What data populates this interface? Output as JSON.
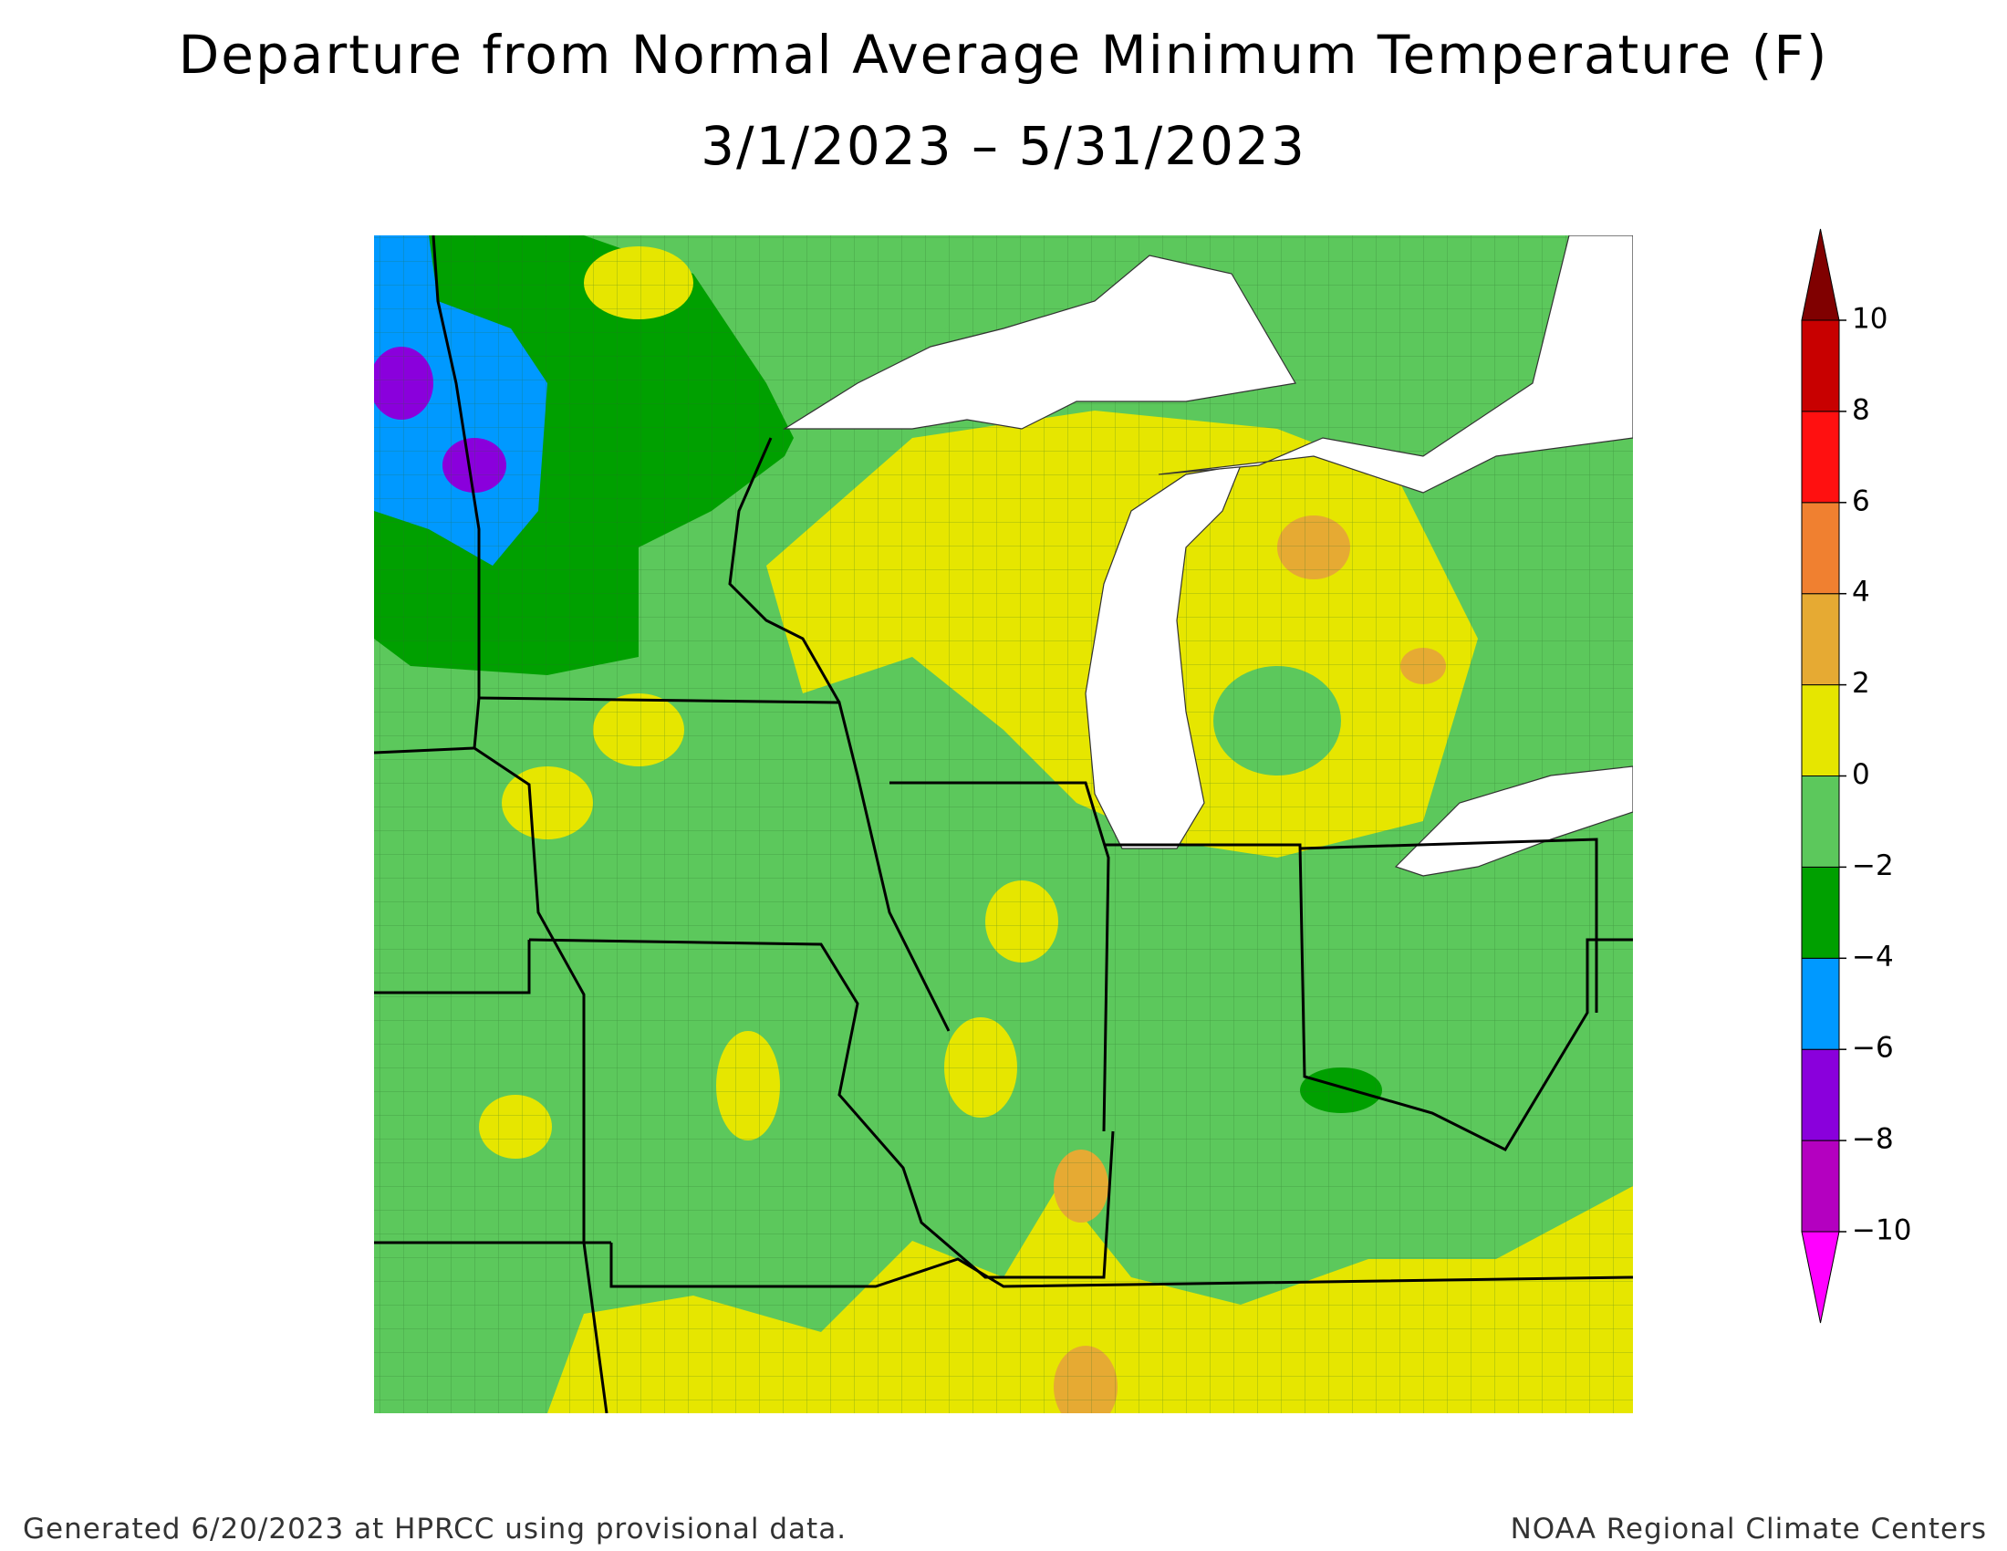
{
  "title": [
    "Departure from Normal Average Minimum Temperature (F)",
    "3/1/2023 – 5/31/2023"
  ],
  "legend": {
    "ticks": [
      {
        "value": -10,
        "label": "−10"
      },
      {
        "value": -8,
        "label": "−8"
      },
      {
        "value": -6,
        "label": "−6"
      },
      {
        "value": -4,
        "label": "−4"
      },
      {
        "value": -2,
        "label": "−2"
      },
      0,
      2,
      4,
      6,
      8,
      10
    ],
    "colors": [
      "#ff00ff",
      "#b400c0",
      "#8a00dc",
      "#0099ff",
      "#00a000",
      "#5cc85c",
      "#e6e600",
      "#e6aa33",
      "#f08030",
      "#ff1010",
      "#c80000",
      "#800000"
    ]
  },
  "footer": {
    "left": "Generated 6/20/2023 at HPRCC using provisional data.",
    "right": "NOAA Regional Climate Centers"
  }
}
